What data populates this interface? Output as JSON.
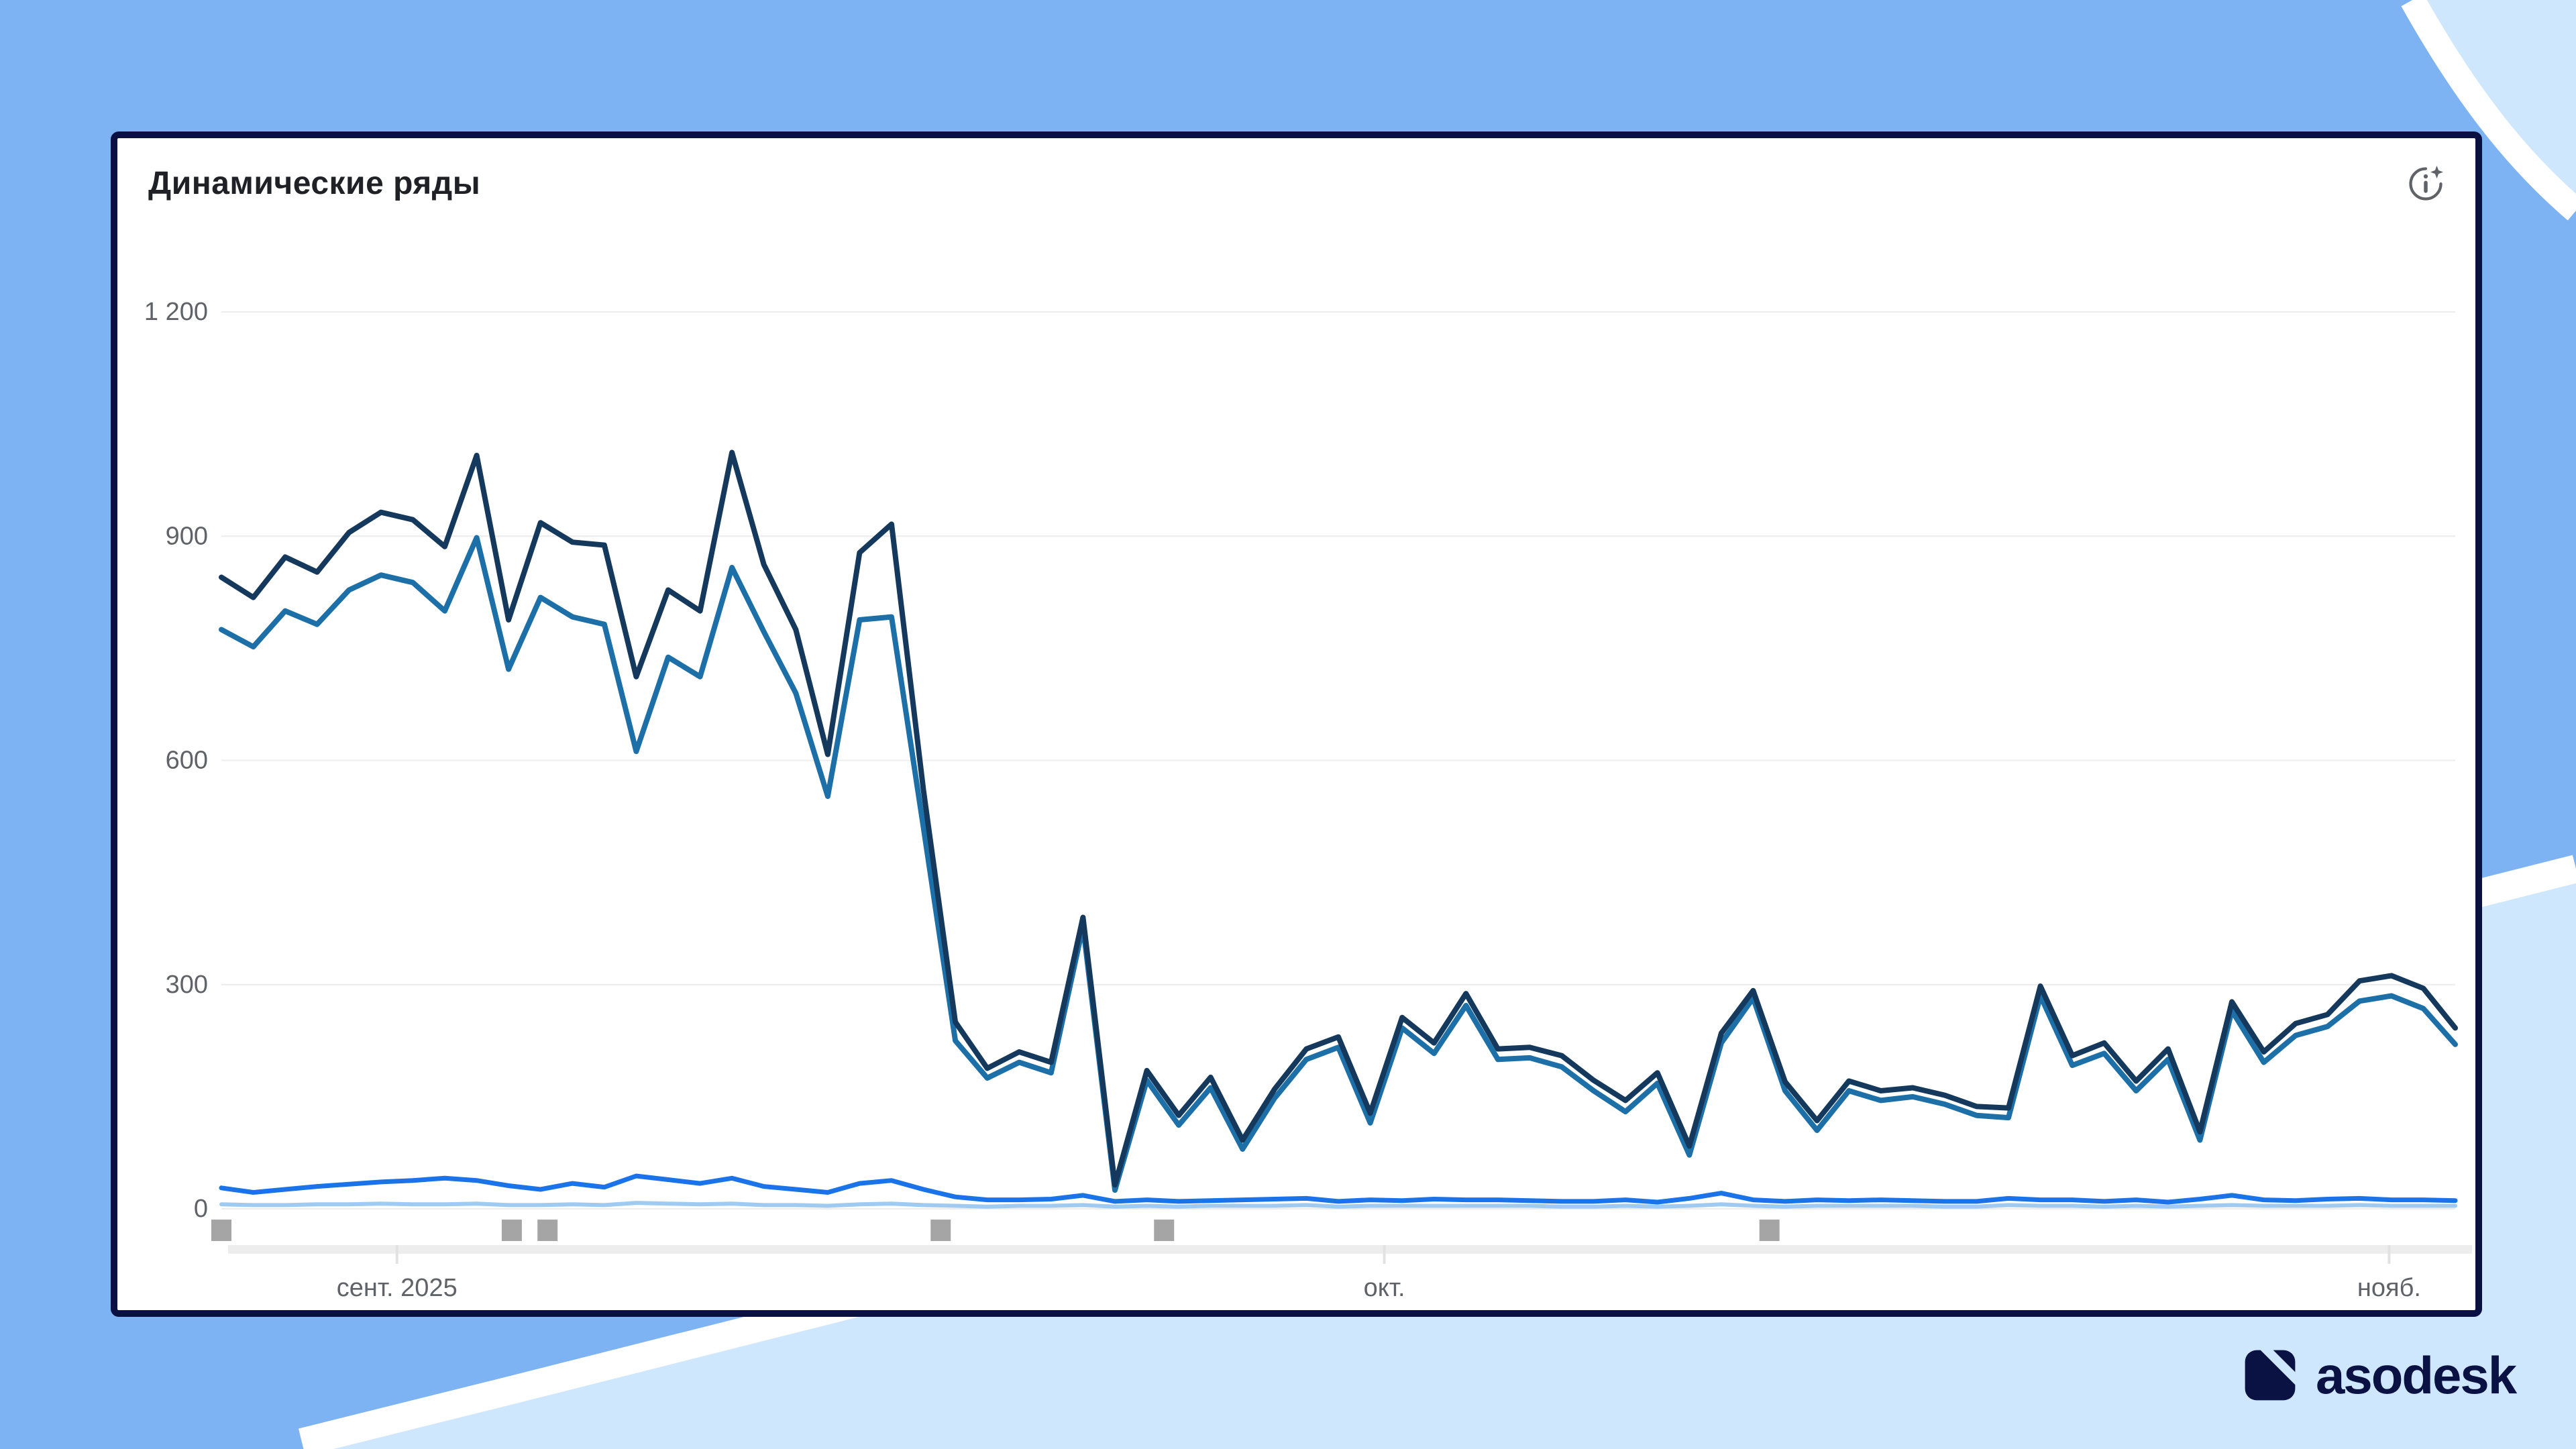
{
  "card": {
    "title": "Динамические ряды"
  },
  "icons": {
    "header_action": "ai-info-sparkle-icon"
  },
  "logo": {
    "text": "asodesk"
  },
  "colors": {
    "page_background": "#7DB2F3",
    "decor_light_blue": "#CFE7FC",
    "decor_white_band": "#FFFFFF",
    "card_border_navy": "#0A1142",
    "axis_text_gray": "#5F6368",
    "gridline_gray": "#ECECEC",
    "event_marker_gray": "#A5A5A5"
  },
  "chart_data": {
    "type": "line",
    "title": "Динамические ряды",
    "xlabel": "",
    "ylabel": "",
    "ylim": [
      0,
      1200
    ],
    "grid": "horizontal",
    "legend": "none",
    "x_range_note": "daily values, late Aug 2025 - early Nov 2025",
    "y_ticks": [
      {
        "label": "1 200",
        "value": 1200
      },
      {
        "label": "900",
        "value": 900
      },
      {
        "label": "600",
        "value": 600
      },
      {
        "label": "300",
        "value": 300
      },
      {
        "label": "0",
        "value": 0
      }
    ],
    "x_ticks": [
      {
        "label": "сент. 2025",
        "pos": 0.0786
      },
      {
        "label": "окт.",
        "pos": 0.5206
      },
      {
        "label": "нояб.",
        "pos": 0.9704
      }
    ],
    "event_markers": [
      0.0,
      0.13,
      0.146,
      0.322,
      0.422,
      0.693
    ],
    "series": [
      {
        "name": "series-4-pale-blue",
        "color": "#9FCBF3",
        "width": 6,
        "values": [
          6,
          5,
          5,
          6,
          6,
          7,
          6,
          6,
          7,
          5,
          5,
          6,
          5,
          8,
          7,
          6,
          7,
          5,
          5,
          4,
          6,
          7,
          5,
          4,
          3,
          4,
          4,
          5,
          3,
          4,
          3,
          4,
          4,
          4,
          5,
          3,
          4,
          4,
          4,
          4,
          4,
          4,
          3,
          3,
          4,
          3,
          4,
          6,
          4,
          3,
          4,
          4,
          4,
          4,
          3,
          3,
          5,
          4,
          4,
          3,
          4,
          3,
          4,
          5,
          4,
          4,
          4,
          5,
          4,
          4,
          4
        ]
      },
      {
        "name": "series-3-bright-blue",
        "color": "#1A73E8",
        "width": 7,
        "values": [
          28,
          22,
          26,
          30,
          33,
          36,
          38,
          41,
          38,
          31,
          26,
          34,
          29,
          44,
          39,
          34,
          41,
          30,
          26,
          22,
          34,
          38,
          26,
          16,
          12,
          12,
          13,
          18,
          10,
          12,
          10,
          11,
          12,
          13,
          14,
          10,
          12,
          11,
          13,
          12,
          12,
          11,
          10,
          10,
          12,
          9,
          14,
          21,
          12,
          10,
          12,
          11,
          12,
          11,
          10,
          10,
          14,
          12,
          12,
          10,
          12,
          9,
          13,
          18,
          12,
          11,
          13,
          14,
          12,
          12,
          11
        ]
      },
      {
        "name": "series-2-steel-blue",
        "color": "#1D6FA8",
        "width": 8,
        "values": [
          775,
          752,
          800,
          782,
          828,
          848,
          838,
          800,
          898,
          722,
          818,
          792,
          782,
          612,
          738,
          712,
          858,
          772,
          690,
          552,
          788,
          792,
          510,
          225,
          175,
          196,
          182,
          378,
          25,
          172,
          112,
          162,
          80,
          148,
          200,
          216,
          115,
          242,
          208,
          272,
          200,
          202,
          190,
          158,
          130,
          168,
          72,
          222,
          282,
          158,
          105,
          158,
          145,
          150,
          140,
          125,
          122,
          285,
          192,
          208,
          158,
          200,
          92,
          265,
          196,
          232,
          244,
          278,
          285,
          268,
          220
        ]
      },
      {
        "name": "series-1-dark-navy",
        "color": "#14395C",
        "width": 8,
        "values": [
          845,
          818,
          872,
          852,
          905,
          932,
          922,
          886,
          1008,
          788,
          918,
          892,
          888,
          712,
          828,
          800,
          1012,
          862,
          775,
          608,
          878,
          916,
          560,
          250,
          188,
          210,
          196,
          390,
          32,
          185,
          125,
          176,
          92,
          160,
          214,
          230,
          128,
          256,
          222,
          288,
          214,
          216,
          205,
          172,
          145,
          182,
          84,
          235,
          292,
          170,
          118,
          171,
          158,
          162,
          152,
          137,
          135,
          298,
          205,
          222,
          171,
          214,
          103,
          277,
          210,
          248,
          260,
          305,
          312,
          295,
          242
        ]
      }
    ]
  }
}
